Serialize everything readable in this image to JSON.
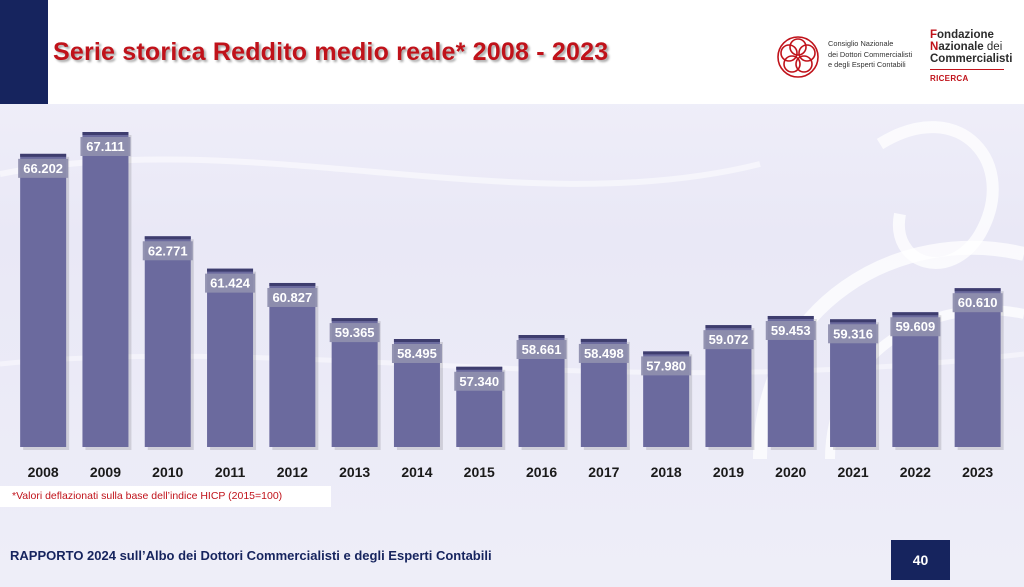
{
  "title": "Serie storica Reddito medio reale* 2008 - 2023",
  "logo_cndc": {
    "line1": "Consiglio Nazionale",
    "line2": "dei Dottori Commercialisti",
    "line3": "e degli Esperti Contabili"
  },
  "logo_fndc": {
    "f1": "F",
    "r1": "ondazione",
    "f2": "N",
    "r2": "azionale",
    "r2b": " dei",
    "r3": "Commercialisti",
    "sub": "RICERCA"
  },
  "chart_data": {
    "type": "bar",
    "categories": [
      "2008",
      "2009",
      "2010",
      "2011",
      "2012",
      "2013",
      "2014",
      "2015",
      "2016",
      "2017",
      "2018",
      "2019",
      "2020",
      "2021",
      "2022",
      "2023"
    ],
    "values": [
      66202,
      67111,
      62771,
      61424,
      60827,
      59365,
      58495,
      57340,
      58661,
      58498,
      57980,
      59072,
      59453,
      59316,
      59609,
      60610
    ],
    "value_labels": [
      "66.202",
      "67.111",
      "62.771",
      "61.424",
      "60.827",
      "59.365",
      "58.495",
      "57.340",
      "58.661",
      "58.498",
      "57.980",
      "59.072",
      "59.453",
      "59.316",
      "59.609",
      "60.610"
    ],
    "title": "Serie storica Reddito medio reale* 2008 - 2023",
    "xlabel": "",
    "ylabel": "",
    "bar_color": "#6b6a9e",
    "label_bg": "#8f8fae"
  },
  "note": "*Valori deflazionati sulla base dell’indice HICP (2015=100)",
  "footer": "RAPPORTO 2024 sull’Albo dei Dottori Commercialisti e degli Esperti Contabili",
  "page_number": "40",
  "colors": {
    "navy": "#16245e",
    "red": "#c0121a"
  }
}
